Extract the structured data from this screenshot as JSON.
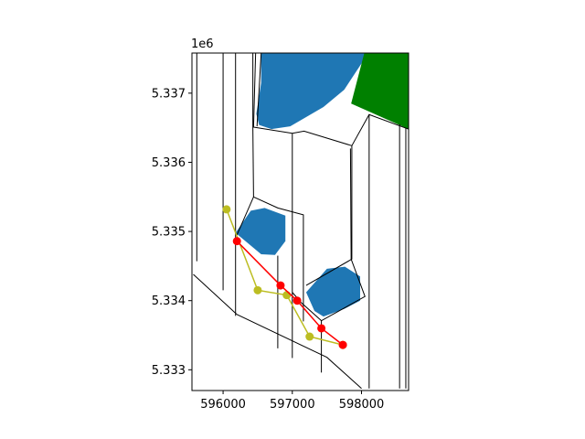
{
  "chart_data": {
    "type": "map",
    "title": "",
    "xlabel": "",
    "ylabel": "",
    "xlim": [
      595550,
      598680
    ],
    "ylim": [
      5332700,
      5337580
    ],
    "y_offset_label": "1e6",
    "x_ticks": [
      {
        "value": 596000,
        "label": "596000"
      },
      {
        "value": 597000,
        "label": "597000"
      },
      {
        "value": 598000,
        "label": "598000"
      }
    ],
    "y_ticks": [
      {
        "value": 5333000,
        "label": "5.333"
      },
      {
        "value": 5334000,
        "label": "5.334"
      },
      {
        "value": 5335000,
        "label": "5.335"
      },
      {
        "value": 5336000,
        "label": "5.336"
      },
      {
        "value": 5337000,
        "label": "5.337"
      }
    ],
    "colors": {
      "water": "#1f77b4",
      "green_area": "#008000",
      "red_path": "#ff0000",
      "yellow_path": "#bcbd22",
      "boundary": "#000000"
    },
    "polygons": [
      {
        "name": "water-body-north",
        "role": "water",
        "coords": [
          [
            596550,
            5337580
          ],
          [
            598070,
            5337580
          ],
          [
            598000,
            5337430
          ],
          [
            597750,
            5337050
          ],
          [
            597450,
            5336800
          ],
          [
            596970,
            5336520
          ],
          [
            596700,
            5336480
          ],
          [
            596520,
            5336540
          ],
          [
            596480,
            5336700
          ],
          [
            596550,
            5337150
          ]
        ]
      },
      {
        "name": "water-body-west",
        "role": "water",
        "coords": [
          [
            596180,
            5334980
          ],
          [
            596400,
            5335300
          ],
          [
            596600,
            5335340
          ],
          [
            596900,
            5335230
          ],
          [
            596900,
            5334860
          ],
          [
            596750,
            5334660
          ],
          [
            596550,
            5334670
          ]
        ]
      },
      {
        "name": "water-body-east",
        "role": "water",
        "coords": [
          [
            597200,
            5334120
          ],
          [
            597500,
            5334460
          ],
          [
            597760,
            5334490
          ],
          [
            597980,
            5334350
          ],
          [
            597980,
            5334000
          ],
          [
            597750,
            5333880
          ],
          [
            597450,
            5333770
          ],
          [
            597320,
            5333850
          ]
        ]
      },
      {
        "name": "green-area",
        "role": "green",
        "coords": [
          [
            598040,
            5337580
          ],
          [
            598680,
            5337580
          ],
          [
            598680,
            5336480
          ],
          [
            597850,
            5336850
          ]
        ]
      }
    ],
    "boundaries": [
      [
        [
          595620,
          5337580
        ],
        [
          595620,
          5334570
        ]
      ],
      [
        [
          595570,
          5334380
        ],
        [
          596200,
          5333800
        ],
        [
          597500,
          5333180
        ],
        [
          598000,
          5332730
        ]
      ],
      [
        [
          596000,
          5337580
        ],
        [
          596000,
          5334150
        ]
      ],
      [
        [
          596180,
          5337580
        ],
        [
          596180,
          5333780
        ]
      ],
      [
        [
          596430,
          5337580
        ],
        [
          596430,
          5336510
        ],
        [
          596440,
          5335500
        ],
        [
          596790,
          5335340
        ],
        [
          597160,
          5335240
        ],
        [
          597160,
          5333700
        ]
      ],
      [
        [
          596430,
          5336510
        ],
        [
          597000,
          5336420
        ],
        [
          597170,
          5336450
        ],
        [
          597860,
          5336240
        ],
        [
          598110,
          5336690
        ],
        [
          598680,
          5336480
        ]
      ],
      [
        [
          596470,
          5337580
        ],
        [
          596440,
          5336510
        ]
      ],
      [
        [
          596550,
          5337580
        ],
        [
          596490,
          5336520
        ]
      ],
      [
        [
          596440,
          5335500
        ],
        [
          596200,
          5334950
        ]
      ],
      [
        [
          597000,
          5336420
        ],
        [
          597000,
          5334120
        ]
      ],
      [
        [
          597000,
          5334120
        ],
        [
          597130,
          5333970
        ],
        [
          597420,
          5333710
        ],
        [
          598050,
          5334060
        ],
        [
          597850,
          5334600
        ],
        [
          597840,
          5336200
        ]
      ],
      [
        [
          597860,
          5336240
        ],
        [
          597860,
          5334600
        ],
        [
          597200,
          5334220
        ]
      ],
      [
        [
          598110,
          5336690
        ],
        [
          598110,
          5332730
        ]
      ],
      [
        [
          598550,
          5336550
        ],
        [
          598550,
          5332730
        ]
      ],
      [
        [
          598640,
          5336500
        ],
        [
          598640,
          5332730
        ]
      ],
      [
        [
          596790,
          5334650
        ],
        [
          596790,
          5333310
        ]
      ],
      [
        [
          597000,
          5334120
        ],
        [
          597000,
          5333170
        ]
      ],
      [
        [
          597420,
          5333710
        ],
        [
          597420,
          5332960
        ]
      ]
    ],
    "series": [
      {
        "name": "red",
        "color": "#ff0000",
        "x": [
          596200,
          596830,
          597070,
          597420,
          597730
        ],
        "y": [
          5334860,
          5334220,
          5334000,
          5333600,
          5333360
        ]
      },
      {
        "name": "yellow",
        "color": "#bcbd22",
        "x": [
          596050,
          596500,
          596920,
          597250,
          597730
        ],
        "y": [
          5335320,
          5334150,
          5334080,
          5333480,
          5333360
        ]
      }
    ]
  }
}
